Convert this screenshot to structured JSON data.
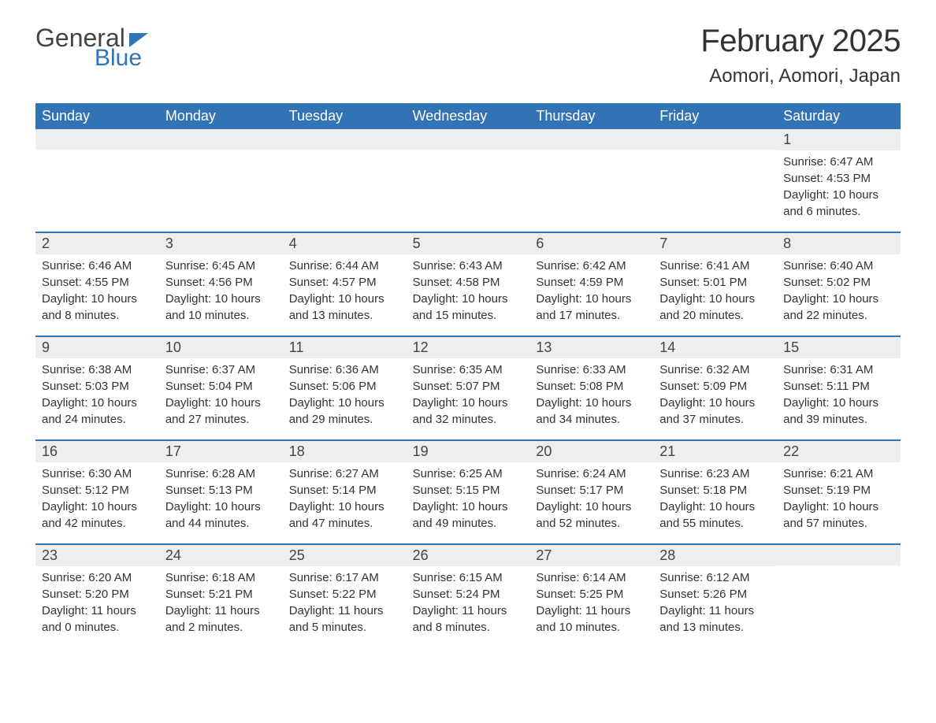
{
  "logo": {
    "text_general": "General",
    "text_blue": "Blue",
    "shape_color": "#3173b5"
  },
  "header": {
    "title": "February 2025",
    "location": "Aomori, Aomori, Japan"
  },
  "colors": {
    "header_bg": "#3173b5",
    "header_text": "#ffffff",
    "day_number_bg": "#eeeeee",
    "text_color": "#333333",
    "border_color": "#3173b5"
  },
  "day_names": [
    "Sunday",
    "Monday",
    "Tuesday",
    "Wednesday",
    "Thursday",
    "Friday",
    "Saturday"
  ],
  "weeks": [
    [
      {
        "day": "",
        "sunrise": "",
        "sunset": "",
        "daylight": ""
      },
      {
        "day": "",
        "sunrise": "",
        "sunset": "",
        "daylight": ""
      },
      {
        "day": "",
        "sunrise": "",
        "sunset": "",
        "daylight": ""
      },
      {
        "day": "",
        "sunrise": "",
        "sunset": "",
        "daylight": ""
      },
      {
        "day": "",
        "sunrise": "",
        "sunset": "",
        "daylight": ""
      },
      {
        "day": "",
        "sunrise": "",
        "sunset": "",
        "daylight": ""
      },
      {
        "day": "1",
        "sunrise": "Sunrise: 6:47 AM",
        "sunset": "Sunset: 4:53 PM",
        "daylight": "Daylight: 10 hours and 6 minutes."
      }
    ],
    [
      {
        "day": "2",
        "sunrise": "Sunrise: 6:46 AM",
        "sunset": "Sunset: 4:55 PM",
        "daylight": "Daylight: 10 hours and 8 minutes."
      },
      {
        "day": "3",
        "sunrise": "Sunrise: 6:45 AM",
        "sunset": "Sunset: 4:56 PM",
        "daylight": "Daylight: 10 hours and 10 minutes."
      },
      {
        "day": "4",
        "sunrise": "Sunrise: 6:44 AM",
        "sunset": "Sunset: 4:57 PM",
        "daylight": "Daylight: 10 hours and 13 minutes."
      },
      {
        "day": "5",
        "sunrise": "Sunrise: 6:43 AM",
        "sunset": "Sunset: 4:58 PM",
        "daylight": "Daylight: 10 hours and 15 minutes."
      },
      {
        "day": "6",
        "sunrise": "Sunrise: 6:42 AM",
        "sunset": "Sunset: 4:59 PM",
        "daylight": "Daylight: 10 hours and 17 minutes."
      },
      {
        "day": "7",
        "sunrise": "Sunrise: 6:41 AM",
        "sunset": "Sunset: 5:01 PM",
        "daylight": "Daylight: 10 hours and 20 minutes."
      },
      {
        "day": "8",
        "sunrise": "Sunrise: 6:40 AM",
        "sunset": "Sunset: 5:02 PM",
        "daylight": "Daylight: 10 hours and 22 minutes."
      }
    ],
    [
      {
        "day": "9",
        "sunrise": "Sunrise: 6:38 AM",
        "sunset": "Sunset: 5:03 PM",
        "daylight": "Daylight: 10 hours and 24 minutes."
      },
      {
        "day": "10",
        "sunrise": "Sunrise: 6:37 AM",
        "sunset": "Sunset: 5:04 PM",
        "daylight": "Daylight: 10 hours and 27 minutes."
      },
      {
        "day": "11",
        "sunrise": "Sunrise: 6:36 AM",
        "sunset": "Sunset: 5:06 PM",
        "daylight": "Daylight: 10 hours and 29 minutes."
      },
      {
        "day": "12",
        "sunrise": "Sunrise: 6:35 AM",
        "sunset": "Sunset: 5:07 PM",
        "daylight": "Daylight: 10 hours and 32 minutes."
      },
      {
        "day": "13",
        "sunrise": "Sunrise: 6:33 AM",
        "sunset": "Sunset: 5:08 PM",
        "daylight": "Daylight: 10 hours and 34 minutes."
      },
      {
        "day": "14",
        "sunrise": "Sunrise: 6:32 AM",
        "sunset": "Sunset: 5:09 PM",
        "daylight": "Daylight: 10 hours and 37 minutes."
      },
      {
        "day": "15",
        "sunrise": "Sunrise: 6:31 AM",
        "sunset": "Sunset: 5:11 PM",
        "daylight": "Daylight: 10 hours and 39 minutes."
      }
    ],
    [
      {
        "day": "16",
        "sunrise": "Sunrise: 6:30 AM",
        "sunset": "Sunset: 5:12 PM",
        "daylight": "Daylight: 10 hours and 42 minutes."
      },
      {
        "day": "17",
        "sunrise": "Sunrise: 6:28 AM",
        "sunset": "Sunset: 5:13 PM",
        "daylight": "Daylight: 10 hours and 44 minutes."
      },
      {
        "day": "18",
        "sunrise": "Sunrise: 6:27 AM",
        "sunset": "Sunset: 5:14 PM",
        "daylight": "Daylight: 10 hours and 47 minutes."
      },
      {
        "day": "19",
        "sunrise": "Sunrise: 6:25 AM",
        "sunset": "Sunset: 5:15 PM",
        "daylight": "Daylight: 10 hours and 49 minutes."
      },
      {
        "day": "20",
        "sunrise": "Sunrise: 6:24 AM",
        "sunset": "Sunset: 5:17 PM",
        "daylight": "Daylight: 10 hours and 52 minutes."
      },
      {
        "day": "21",
        "sunrise": "Sunrise: 6:23 AM",
        "sunset": "Sunset: 5:18 PM",
        "daylight": "Daylight: 10 hours and 55 minutes."
      },
      {
        "day": "22",
        "sunrise": "Sunrise: 6:21 AM",
        "sunset": "Sunset: 5:19 PM",
        "daylight": "Daylight: 10 hours and 57 minutes."
      }
    ],
    [
      {
        "day": "23",
        "sunrise": "Sunrise: 6:20 AM",
        "sunset": "Sunset: 5:20 PM",
        "daylight": "Daylight: 11 hours and 0 minutes."
      },
      {
        "day": "24",
        "sunrise": "Sunrise: 6:18 AM",
        "sunset": "Sunset: 5:21 PM",
        "daylight": "Daylight: 11 hours and 2 minutes."
      },
      {
        "day": "25",
        "sunrise": "Sunrise: 6:17 AM",
        "sunset": "Sunset: 5:22 PM",
        "daylight": "Daylight: 11 hours and 5 minutes."
      },
      {
        "day": "26",
        "sunrise": "Sunrise: 6:15 AM",
        "sunset": "Sunset: 5:24 PM",
        "daylight": "Daylight: 11 hours and 8 minutes."
      },
      {
        "day": "27",
        "sunrise": "Sunrise: 6:14 AM",
        "sunset": "Sunset: 5:25 PM",
        "daylight": "Daylight: 11 hours and 10 minutes."
      },
      {
        "day": "28",
        "sunrise": "Sunrise: 6:12 AM",
        "sunset": "Sunset: 5:26 PM",
        "daylight": "Daylight: 11 hours and 13 minutes."
      },
      {
        "day": "",
        "sunrise": "",
        "sunset": "",
        "daylight": ""
      }
    ]
  ]
}
